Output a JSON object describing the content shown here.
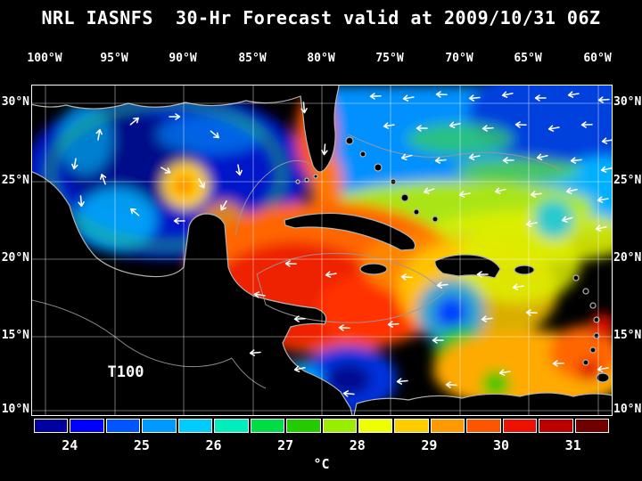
{
  "title": "NRL IASNFS  30-Hr Forecast valid at 2009/10/31 06Z",
  "map": {
    "field_label": "T100",
    "lon_ticks": [
      "100°W",
      "95°W",
      "90°W",
      "85°W",
      "80°W",
      "75°W",
      "70°W",
      "65°W",
      "60°W"
    ],
    "lat_ticks": [
      "30°N",
      "25°N",
      "20°N",
      "15°N",
      "10°N"
    ]
  },
  "colorbar": {
    "unit_label": "°C",
    "tick_labels": [
      "24",
      "25",
      "26",
      "27",
      "28",
      "29",
      "30",
      "31"
    ],
    "segment_colors": [
      "#0000a0",
      "#0000ff",
      "#0055ff",
      "#0099ff",
      "#00ccff",
      "#00eebb",
      "#00dd44",
      "#22cc00",
      "#99ee00",
      "#eeff00",
      "#ffcc00",
      "#ff9900",
      "#ff5500",
      "#ee1100",
      "#bb0000",
      "#700000"
    ]
  },
  "chart_data": {
    "type": "heatmap",
    "title": "NRL IASNFS 30-Hr Forecast valid at 2009/10/31 06Z",
    "variable": "T100",
    "units": "°C",
    "x_ticks": [
      "100°W",
      "95°W",
      "90°W",
      "85°W",
      "80°W",
      "75°W",
      "70°W",
      "65°W",
      "60°W"
    ],
    "y_ticks": [
      "30°N",
      "25°N",
      "20°N",
      "15°N",
      "10°N"
    ],
    "x_range": [
      -100,
      -60
    ],
    "y_range_approx": [
      10,
      31
    ],
    "colorbar_ticks": [
      24,
      25,
      26,
      27,
      28,
      29,
      30,
      31
    ],
    "colorbar_segments": 16,
    "colorbar_range_approx": [
      23.5,
      31.5
    ],
    "grid": true,
    "legend_position": "bottom",
    "overlays": [
      "white current/wind vector arrows",
      "black land mask",
      "gray contour lines",
      "white graticule every 5 degrees"
    ],
    "approx_field_by_region": [
      {
        "region": "Gulf of Mexico interior",
        "temp_C": "24-26 (cold blues)"
      },
      {
        "region": "Warm eddy near 90°W 25°N",
        "temp_C": "27-28 (yellow/orange ring)"
      },
      {
        "region": "NW Caribbean / Yucatan Basin",
        "temp_C": "29-30 (red/orange pool)"
      },
      {
        "region": "Central and Eastern Caribbean",
        "temp_C": "27-29 (orange/yellow with cool blue eddies)"
      },
      {
        "region": "Subtropical Atlantic NE corner",
        "temp_C": "24-26 (blues, strong vectors)"
      },
      {
        "region": "Atlantic 20-25°N band",
        "temp_C": "26-28 (green/yellow)"
      },
      {
        "region": "SE near Lesser Antilles",
        "temp_C": "28-30 (orange/red patches)"
      }
    ]
  }
}
